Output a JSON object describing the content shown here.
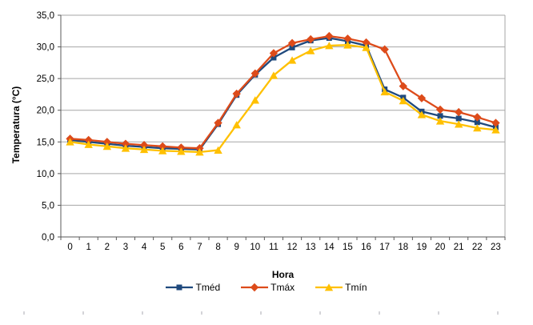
{
  "chart_data": {
    "type": "line",
    "title": "",
    "xlabel": "Hora",
    "ylabel": "Temperatura (°C)",
    "x_tick_labels": [
      "0",
      "1",
      "2",
      "3",
      "4",
      "5",
      "6",
      "7",
      "8",
      "9",
      "10",
      "11",
      "12",
      "13",
      "14",
      "15",
      "16",
      "17",
      "18",
      "19",
      "20",
      "21",
      "22",
      "23"
    ],
    "ylim": [
      0,
      35
    ],
    "ytick_step": 5,
    "ytick_labels": [
      "0,0",
      "5,0",
      "10,0",
      "15,0",
      "20,0",
      "25,0",
      "30,0",
      "35,0"
    ],
    "grid": "horizontal",
    "legend_position": "bottom",
    "series": [
      {
        "name": "Tméd",
        "marker": "square",
        "color": "#1F497D",
        "values": [
          15.3,
          15.0,
          14.7,
          14.4,
          14.2,
          14.0,
          13.9,
          13.8,
          17.8,
          22.4,
          25.6,
          28.3,
          29.9,
          31.0,
          31.4,
          30.9,
          30.2,
          23.3,
          22.0,
          19.8,
          19.1,
          18.7,
          18.1,
          17.3
        ]
      },
      {
        "name": "Tmáx",
        "marker": "diamond",
        "color": "#DD4B1A",
        "values": [
          15.5,
          15.3,
          15.0,
          14.7,
          14.5,
          14.3,
          14.1,
          14.0,
          18.0,
          22.6,
          25.8,
          29.0,
          30.6,
          31.2,
          31.7,
          31.3,
          30.7,
          29.6,
          23.8,
          21.9,
          20.1,
          19.7,
          18.9,
          18.0
        ]
      },
      {
        "name": "Tmín",
        "marker": "triangle",
        "color": "#FFC000",
        "values": [
          15.0,
          14.6,
          14.3,
          14.0,
          13.8,
          13.6,
          13.5,
          13.4,
          13.7,
          17.7,
          21.6,
          25.5,
          27.9,
          29.4,
          30.2,
          30.3,
          29.9,
          22.9,
          21.5,
          19.3,
          18.3,
          17.8,
          17.2,
          16.9
        ]
      }
    ]
  },
  "styles": {
    "gridline_color": "#A6A6A6",
    "axis_color": "#595959",
    "tick_label_color": "#000000"
  }
}
